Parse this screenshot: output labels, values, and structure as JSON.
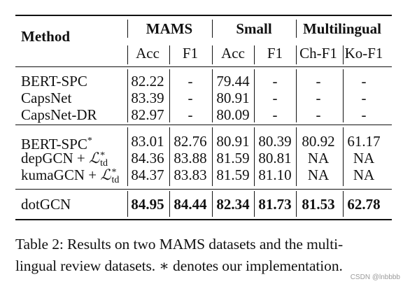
{
  "table": {
    "header": {
      "method": "Method",
      "groups": [
        "MAMS",
        "Small",
        "Multilingual"
      ],
      "subcols": [
        "Acc",
        "F1",
        "Acc",
        "F1",
        "Ch-F1",
        "Ko-F1"
      ]
    },
    "blocks": [
      {
        "rows": [
          {
            "method": "BERT-SPC",
            "sup": "",
            "sub": "",
            "values": [
              "82.22",
              "-",
              "79.44",
              "-",
              "-",
              "-"
            ]
          },
          {
            "method": "CapsNet",
            "sup": "",
            "sub": "",
            "values": [
              "83.39",
              "-",
              "80.91",
              "-",
              "-",
              "-"
            ]
          },
          {
            "method": "CapsNet-DR",
            "sup": "",
            "sub": "",
            "values": [
              "82.97",
              "-",
              "80.09",
              "-",
              "-",
              "-"
            ]
          }
        ]
      },
      {
        "rows": [
          {
            "method": "BERT-SPC",
            "sup": "*",
            "sub": "",
            "values": [
              "83.01",
              "82.76",
              "80.91",
              "80.39",
              "80.92",
              "61.17"
            ]
          },
          {
            "method": "depGCN + ",
            "sup": "*",
            "sub": "td",
            "values": [
              "84.36",
              "83.88",
              "81.59",
              "80.81",
              "NA",
              "NA"
            ]
          },
          {
            "method": "kumaGCN + ",
            "sup": "*",
            "sub": "td",
            "values": [
              "84.37",
              "83.83",
              "81.59",
              "81.10",
              "NA",
              "NA"
            ]
          }
        ]
      },
      {
        "bold": true,
        "rows": [
          {
            "method": "dotGCN",
            "sup": "",
            "sub": "",
            "values": [
              "84.95",
              "84.44",
              "82.34",
              "81.73",
              "81.53",
              "62.78"
            ]
          }
        ]
      }
    ],
    "loss_symbol": "ℒ"
  },
  "caption": "Table 2: Results on two MAMS datasets and the multi-lingual review datasets. ∗ denotes our implementation.",
  "caption_lines": [
    "Table 2: Results on two MAMS datasets and the multi-",
    "lingual review datasets. ∗ denotes our implementation."
  ],
  "watermark": "CSDN @lnbbbb"
}
